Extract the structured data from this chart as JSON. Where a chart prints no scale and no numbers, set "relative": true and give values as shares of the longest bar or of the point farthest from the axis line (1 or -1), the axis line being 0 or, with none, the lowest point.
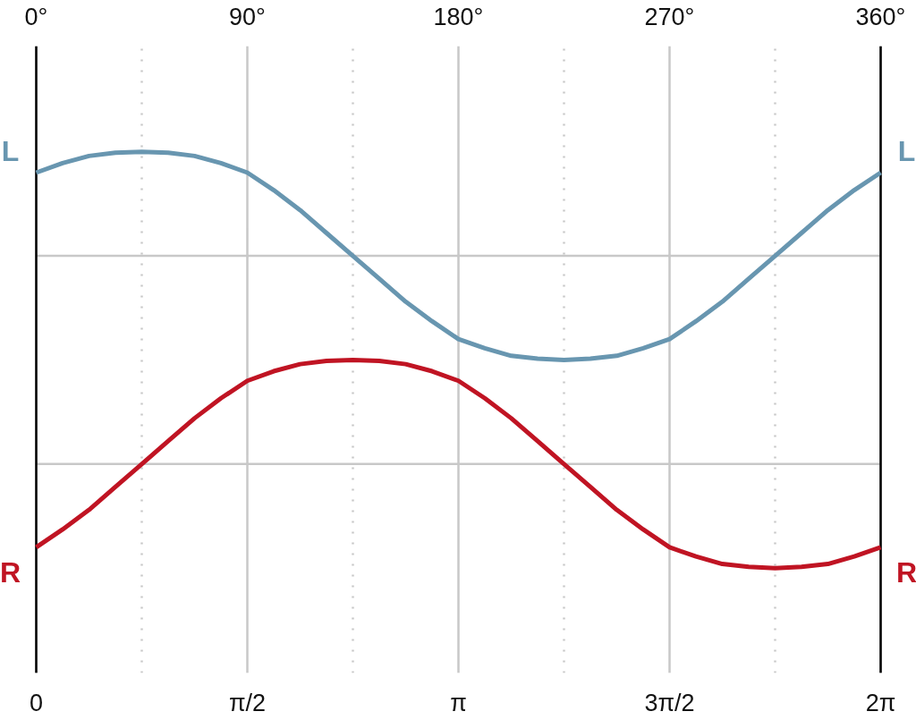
{
  "chart_data": {
    "type": "line",
    "relative": true,
    "x": [
      0,
      0.1963,
      0.3927,
      0.589,
      0.7854,
      0.9817,
      1.1781,
      1.3744,
      1.5708,
      1.7671,
      1.9635,
      2.1598,
      2.3562,
      2.5525,
      2.7489,
      2.9452,
      3.1416,
      3.3379,
      3.5343,
      3.7306,
      3.927,
      4.1233,
      4.3197,
      4.516,
      4.7124,
      4.9087,
      5.1051,
      5.3014,
      5.4978,
      5.6941,
      5.8905,
      6.0868,
      6.2832
    ],
    "series": [
      {
        "name": "L",
        "color": "#6896b0",
        "values": [
          0.95,
          0.973,
          0.99,
          0.998,
          1.0,
          0.998,
          0.99,
          0.973,
          0.95,
          0.908,
          0.86,
          0.805,
          0.75,
          0.695,
          0.64,
          0.593,
          0.55,
          0.528,
          0.51,
          0.503,
          0.5,
          0.503,
          0.51,
          0.528,
          0.55,
          0.593,
          0.64,
          0.695,
          0.75,
          0.805,
          0.86,
          0.908,
          0.95
        ]
      },
      {
        "name": "R",
        "color": "#c01423",
        "values": [
          0.05,
          0.093,
          0.14,
          0.195,
          0.25,
          0.305,
          0.36,
          0.408,
          0.45,
          0.473,
          0.49,
          0.498,
          0.5,
          0.498,
          0.49,
          0.473,
          0.45,
          0.408,
          0.36,
          0.305,
          0.25,
          0.195,
          0.14,
          0.093,
          0.05,
          0.028,
          0.01,
          0.003,
          0.0,
          0.003,
          0.01,
          0.028,
          0.05
        ]
      }
    ],
    "xlim": [
      0,
      6.2832
    ],
    "xticks": [
      0,
      {
        "value": 1.5708,
        "label": "π/2"
      },
      {
        "value": 3.1416,
        "label": "π"
      },
      {
        "value": 4.7124,
        "label": "3π/2"
      },
      {
        "value": 6.2832,
        "label": "2π"
      }
    ],
    "x2lim": [
      0,
      360
    ],
    "x2ticks": [
      {
        "value": 0,
        "label": "0°"
      },
      {
        "value": 90,
        "label": "90°"
      },
      {
        "value": 180,
        "label": "180°"
      },
      {
        "value": 270,
        "label": "270°"
      },
      {
        "value": 360,
        "label": "360°"
      }
    ],
    "grid": "x",
    "ref_lines": [
      {
        "axis": "x",
        "value": 0.7854,
        "color": "#c8c8c8",
        "line_style": "dotted"
      },
      {
        "axis": "x",
        "value": 2.3562,
        "color": "#c8c8c8",
        "line_style": "dotted"
      },
      {
        "axis": "x",
        "value": 3.927,
        "color": "#c8c8c8",
        "line_style": "dotted"
      },
      {
        "axis": "x",
        "value": 5.4978,
        "color": "#c8c8c8",
        "line_style": "dotted"
      },
      {
        "axis": "y",
        "value": 0.75,
        "color": "#c8c8c8",
        "line_style": "solid"
      },
      {
        "axis": "y",
        "value": 0.25,
        "color": "#c8c8c8",
        "line_style": "solid"
      },
      {
        "axis": "x",
        "value": 0,
        "color": "#000000",
        "line_style": "solid"
      },
      {
        "axis": "x",
        "value": 6.2832,
        "color": "#000000",
        "line_style": "solid"
      }
    ]
  }
}
